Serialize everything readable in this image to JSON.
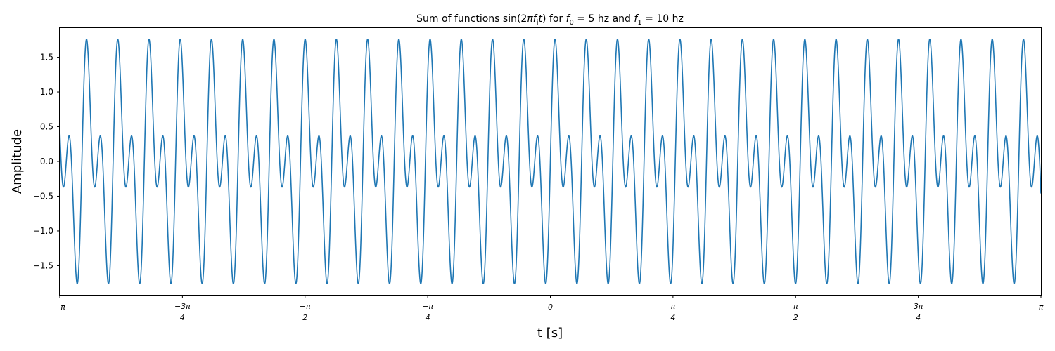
{
  "chart_data": {
    "type": "line",
    "title_parts": [
      "Sum of functions sin(2",
      "π",
      "f",
      "i",
      "t",
      ") for ",
      "f",
      "0",
      " = 5 hz and ",
      "f",
      "1",
      " = 10 hz"
    ],
    "xlabel": "t [s]",
    "ylabel": "Amplitude",
    "xlim": [
      -3.14159265,
      3.14159265
    ],
    "ylim": [
      -1.92,
      1.92
    ],
    "series": [
      {
        "function": "sin(2*pi*5*t) + sin(2*pi*10*t)",
        "frequencies_hz": [
          5,
          10
        ],
        "color": "#1f77b4"
      }
    ],
    "y_ticks": [
      {
        "value": -1.5,
        "label": "−1.5"
      },
      {
        "value": -1.0,
        "label": "−1.0"
      },
      {
        "value": -0.5,
        "label": "−0.5"
      },
      {
        "value": 0.0,
        "label": "0.0"
      },
      {
        "value": 0.5,
        "label": "0.5"
      },
      {
        "value": 1.0,
        "label": "1.0"
      },
      {
        "value": 1.5,
        "label": "1.5"
      }
    ],
    "x_ticks": [
      {
        "value": -3.14159265,
        "label": "−π",
        "kind": "plain"
      },
      {
        "value": -2.35619449,
        "num": "−3π",
        "den": "4",
        "kind": "frac"
      },
      {
        "value": -1.57079633,
        "num": "−π",
        "den": "2",
        "kind": "frac"
      },
      {
        "value": -0.78539816,
        "num": "−π",
        "den": "4",
        "kind": "frac"
      },
      {
        "value": 0.0,
        "label": "0",
        "kind": "plain"
      },
      {
        "value": 0.78539816,
        "num": "π",
        "den": "4",
        "kind": "frac"
      },
      {
        "value": 1.57079633,
        "num": "π",
        "den": "2",
        "kind": "frac"
      },
      {
        "value": 2.35619449,
        "num": "3π",
        "den": "4",
        "kind": "frac"
      },
      {
        "value": 3.14159265,
        "label": "π",
        "kind": "plain"
      }
    ],
    "grid": false,
    "legend": "none"
  }
}
